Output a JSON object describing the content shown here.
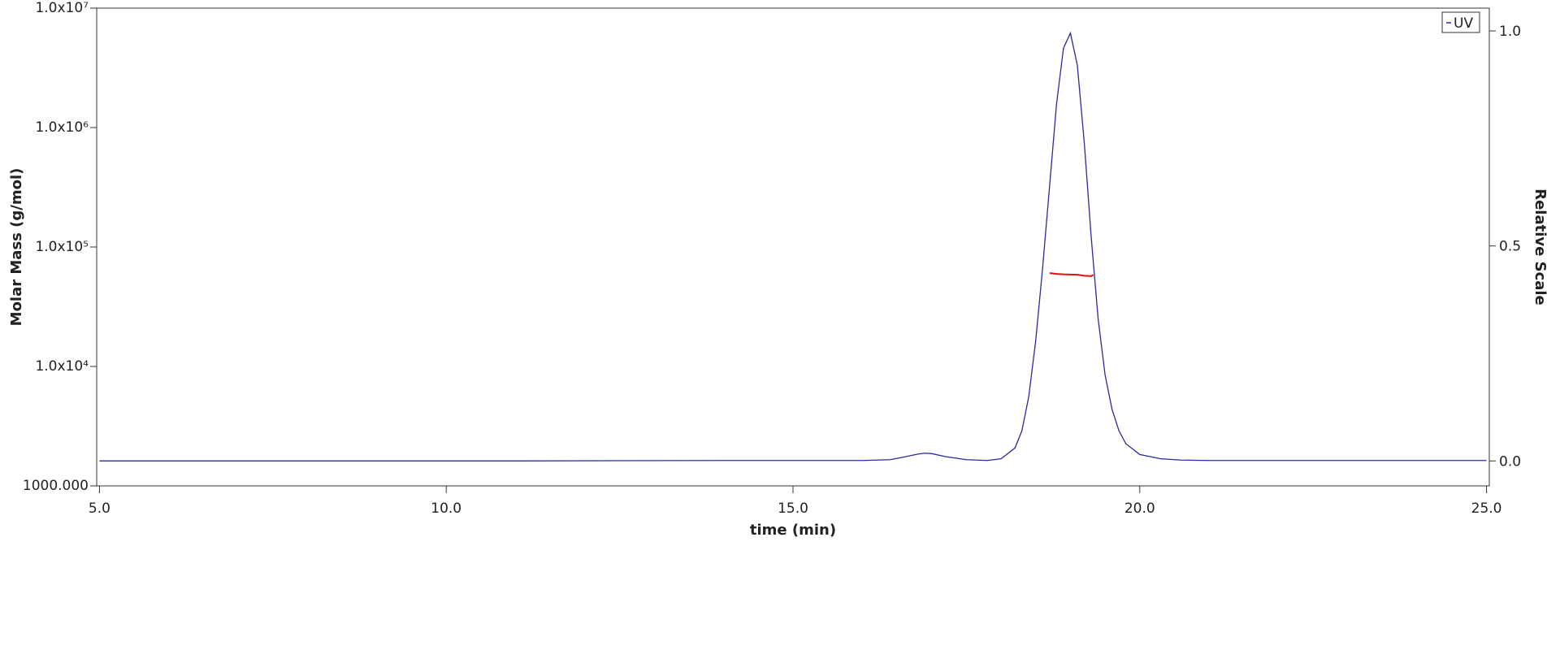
{
  "chart_data": {
    "type": "line",
    "xlabel": "time (min)",
    "ylabel": "Molar Mass (g/mol)",
    "y2label": "Relative Scale",
    "xlim": [
      4.96,
      25.04
    ],
    "xticks": [
      {
        "value": 5,
        "label": "5.0"
      },
      {
        "value": 10,
        "label": "10.0"
      },
      {
        "value": 15,
        "label": "15.0"
      },
      {
        "value": 20,
        "label": "20.0"
      },
      {
        "value": 25,
        "label": "25.0"
      }
    ],
    "ylim": [
      1000,
      10000000
    ],
    "ylog": true,
    "yticks": [
      {
        "value": 1000,
        "label": "1000.000"
      },
      {
        "value": 10000,
        "label": "1.0x10⁴"
      },
      {
        "value": 100000,
        "label": "1.0x10⁵"
      },
      {
        "value": 1000000,
        "label": "1.0x10⁶"
      },
      {
        "value": 10000000,
        "label": "1.0x10⁷"
      }
    ],
    "y2lim": [
      -0.058,
      1.053
    ],
    "y2ticks": [
      {
        "value": 0,
        "label": "0.0"
      },
      {
        "value": 0.5,
        "label": "0.5"
      },
      {
        "value": 1,
        "label": "1.0"
      }
    ],
    "legend": "upper right",
    "x": [
      5.0,
      8.0,
      11.0,
      14.0,
      16.0,
      16.4,
      16.6,
      16.8,
      16.9,
      17.0,
      17.2,
      17.5,
      17.8,
      18.0,
      18.2,
      18.3,
      18.4,
      18.5,
      18.6,
      18.7,
      18.8,
      18.9,
      19.0,
      19.1,
      19.2,
      19.3,
      19.4,
      19.5,
      19.6,
      19.7,
      19.8,
      20.0,
      20.3,
      20.6,
      21.0,
      25.0
    ],
    "series": [
      {
        "name": "UV",
        "color": "#2a2a9c",
        "axis": "y2",
        "values": [
          0,
          0,
          0,
          0.001,
          0.001,
          0.003,
          0.009,
          0.016,
          0.018,
          0.017,
          0.01,
          0.003,
          0.001,
          0.005,
          0.03,
          0.07,
          0.15,
          0.28,
          0.45,
          0.64,
          0.83,
          0.96,
          0.995,
          0.92,
          0.74,
          0.52,
          0.33,
          0.2,
          0.12,
          0.07,
          0.04,
          0.015,
          0.005,
          0.002,
          0.001,
          0.001
        ]
      }
    ],
    "molar_mass": {
      "color": "#e01010",
      "x": [
        18.7,
        18.8,
        18.9,
        19.0,
        19.1,
        19.2,
        19.3,
        19.33
      ],
      "values": [
        60500,
        59500,
        59000,
        58800,
        58600,
        57500,
        57000,
        58500
      ]
    }
  }
}
